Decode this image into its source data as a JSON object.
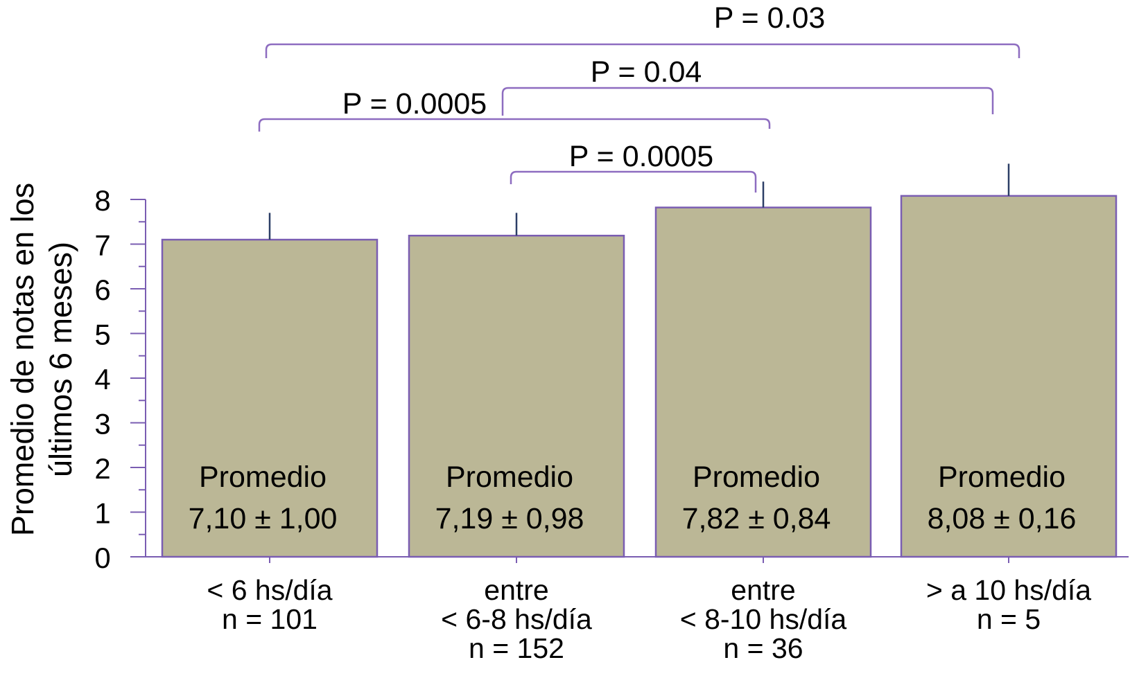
{
  "chart_data": {
    "type": "bar",
    "title": "",
    "xlabel": "",
    "ylabel": "Promedio de notas en los últimos 6 meses)",
    "ylabel_lines": [
      "Promedio de notas en los",
      "últimos 6 meses)"
    ],
    "ylim": [
      0,
      8
    ],
    "yticks": [
      "0",
      "1",
      "2",
      "3",
      "4",
      "5",
      "6",
      "7",
      "8"
    ],
    "grid": false,
    "categories": [
      {
        "lines": [
          "< 6 hs/día",
          "n = 101"
        ]
      },
      {
        "lines": [
          "entre",
          "< 6-8 hs/día",
          "n = 152"
        ]
      },
      {
        "lines": [
          "entre",
          "< 8-10 hs/día",
          "n = 36"
        ]
      },
      {
        "lines": [
          "> a 10 hs/día",
          "n = 5"
        ]
      }
    ],
    "values": [
      7.1,
      7.19,
      7.82,
      8.08
    ],
    "sd": [
      1.0,
      0.98,
      0.84,
      0.16
    ],
    "error_top": [
      7.7,
      7.7,
      8.4,
      8.8
    ],
    "bar_labels": [
      {
        "title": "Promedio",
        "value": "7,10 ± 1,00"
      },
      {
        "title": "Promedio",
        "value": "7,19 ± 0,98"
      },
      {
        "title": "Promedio",
        "value": "7,82 ± 0,84"
      },
      {
        "title": "Promedio",
        "value": "8,08 ± 0,16"
      }
    ],
    "comparisons": [
      {
        "from": 1,
        "to": 2,
        "label": "P = 0.0005"
      },
      {
        "from": 0,
        "to": 2,
        "label": "P = 0.0005"
      },
      {
        "from": 1,
        "to": 3,
        "label": "P = 0.04"
      },
      {
        "from": 0,
        "to": 3,
        "label": "P = 0.03"
      }
    ],
    "colors": {
      "bar_fill": "#BBB796",
      "bar_stroke": "#7A5DB2",
      "axis": "#7A5DB2",
      "bracket": "#8D6CC0",
      "error_bar": "#2C3E66"
    }
  }
}
